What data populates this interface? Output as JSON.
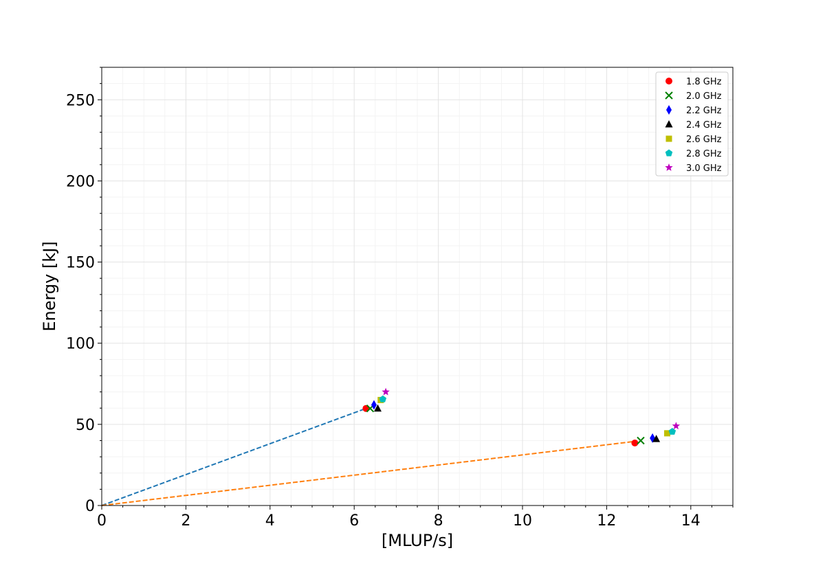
{
  "chart_data": {
    "type": "scatter",
    "xlabel": "[MLUP/s]",
    "ylabel": "Energy [kJ]",
    "xlim": [
      0,
      15
    ],
    "ylim": [
      0,
      270
    ],
    "x_ticks": [
      0,
      2,
      4,
      6,
      8,
      10,
      12,
      14
    ],
    "y_ticks": [
      0,
      50,
      100,
      150,
      200,
      250
    ],
    "grid": true,
    "legend_position": "top-right",
    "series": [
      {
        "name": "1.8 GHz",
        "marker": "circle",
        "color": "#ff0000",
        "points": [
          {
            "x": 6.28,
            "y": 59.8
          },
          {
            "x": 12.67,
            "y": 38.5
          }
        ]
      },
      {
        "name": "2.0 GHz",
        "marker": "x",
        "color": "#008000",
        "points": [
          {
            "x": 6.38,
            "y": 59.8
          },
          {
            "x": 12.81,
            "y": 40.0
          }
        ]
      },
      {
        "name": "2.2 GHz",
        "marker": "thin-diamond",
        "color": "#0000ff",
        "points": [
          {
            "x": 6.47,
            "y": 62.0
          },
          {
            "x": 13.09,
            "y": 41.5
          }
        ]
      },
      {
        "name": "2.4 GHz",
        "marker": "triangle",
        "color": "#000000",
        "points": [
          {
            "x": 6.56,
            "y": 59.8
          },
          {
            "x": 13.18,
            "y": 41.0
          }
        ]
      },
      {
        "name": "2.6 GHz",
        "marker": "square",
        "color": "#bfbf00",
        "points": [
          {
            "x": 6.63,
            "y": 65.0
          },
          {
            "x": 13.44,
            "y": 44.5
          }
        ]
      },
      {
        "name": "2.8 GHz",
        "marker": "pentagon",
        "color": "#00bfbf",
        "points": [
          {
            "x": 6.68,
            "y": 65.5
          },
          {
            "x": 13.56,
            "y": 45.5
          }
        ]
      },
      {
        "name": "3.0 GHz",
        "marker": "star",
        "color": "#bf00bf",
        "points": [
          {
            "x": 6.75,
            "y": 70.0
          },
          {
            "x": 13.65,
            "y": 49.0
          }
        ]
      }
    ],
    "reference_lines": [
      {
        "color": "#1f77b4",
        "style": "dashed",
        "x": [
          0,
          6.28
        ],
        "y": [
          0,
          59.8
        ]
      },
      {
        "color": "#ff7f0e",
        "style": "dashed",
        "x": [
          0,
          12.67
        ],
        "y": [
          0,
          39.5
        ]
      }
    ]
  }
}
